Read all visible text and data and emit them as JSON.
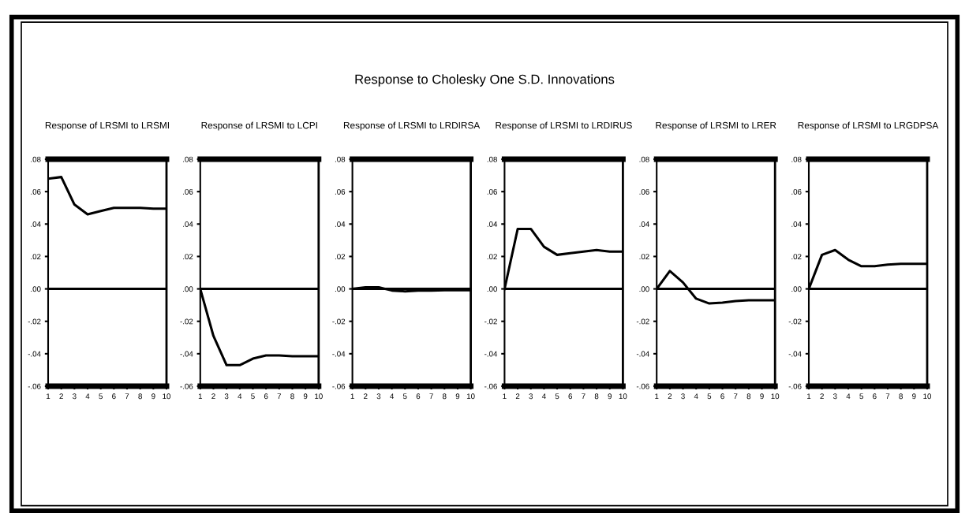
{
  "chart_data": [
    {
      "type": "line",
      "title": "Response of LRSMI to LRSMI",
      "annotations": [
        "Response to Cholesky One S.D. Innovations"
      ],
      "x": [
        1,
        2,
        3,
        4,
        5,
        6,
        7,
        8,
        9,
        10
      ],
      "xlim": [
        1,
        10
      ],
      "xticks": [
        1,
        2,
        3,
        4,
        5,
        6,
        7,
        8,
        9,
        10
      ],
      "ylim": [
        -0.06,
        0.08
      ],
      "yticks": [
        {
          "value": -0.06,
          "label": "-.06"
        },
        {
          "value": -0.04,
          "label": "-.04"
        },
        {
          "value": -0.02,
          "label": "-.02"
        },
        {
          "value": 0,
          "label": ".00"
        },
        {
          "value": 0.02,
          "label": ".02"
        },
        {
          "value": 0.04,
          "label": ".04"
        },
        {
          "value": 0.06,
          "label": ".06"
        },
        {
          "value": 0.08,
          "label": ".08"
        }
      ],
      "ref_lines": [
        {
          "axis": "y",
          "value": 0,
          "color": "#000000"
        }
      ],
      "grid": false,
      "legend": false,
      "series": [
        {
          "color": "#000000",
          "values": [
            0.068,
            0.069,
            0.052,
            0.046,
            0.048,
            0.05,
            0.05,
            0.05,
            0.0495,
            0.0495
          ]
        }
      ]
    },
    {
      "type": "line",
      "title": "Response of LRSMI to LCPI",
      "x": [
        1,
        2,
        3,
        4,
        5,
        6,
        7,
        8,
        9,
        10
      ],
      "xlim": [
        1,
        10
      ],
      "xticks": [
        1,
        2,
        3,
        4,
        5,
        6,
        7,
        8,
        9,
        10
      ],
      "ylim": [
        -0.06,
        0.08
      ],
      "yticks": [
        {
          "value": -0.06,
          "label": "-.06"
        },
        {
          "value": -0.04,
          "label": "-.04"
        },
        {
          "value": -0.02,
          "label": "-.02"
        },
        {
          "value": 0,
          "label": ".00"
        },
        {
          "value": 0.02,
          "label": ".02"
        },
        {
          "value": 0.04,
          "label": ".04"
        },
        {
          "value": 0.06,
          "label": ".06"
        },
        {
          "value": 0.08,
          "label": ".08"
        }
      ],
      "ref_lines": [
        {
          "axis": "y",
          "value": 0,
          "color": "#000000"
        }
      ],
      "grid": false,
      "legend": false,
      "series": [
        {
          "color": "#000000",
          "values": [
            0.0,
            -0.029,
            -0.047,
            -0.047,
            -0.043,
            -0.041,
            -0.041,
            -0.0415,
            -0.0415,
            -0.0415
          ]
        }
      ]
    },
    {
      "type": "line",
      "title": "Response of LRSMI to LRDIRSA",
      "x": [
        1,
        2,
        3,
        4,
        5,
        6,
        7,
        8,
        9,
        10
      ],
      "xlim": [
        1,
        10
      ],
      "xticks": [
        1,
        2,
        3,
        4,
        5,
        6,
        7,
        8,
        9,
        10
      ],
      "ylim": [
        -0.06,
        0.08
      ],
      "yticks": [
        {
          "value": -0.06,
          "label": "-.06"
        },
        {
          "value": -0.04,
          "label": "-.04"
        },
        {
          "value": -0.02,
          "label": "-.02"
        },
        {
          "value": 0,
          "label": ".00"
        },
        {
          "value": 0.02,
          "label": ".02"
        },
        {
          "value": 0.04,
          "label": ".04"
        },
        {
          "value": 0.06,
          "label": ".06"
        },
        {
          "value": 0.08,
          "label": ".08"
        }
      ],
      "ref_lines": [
        {
          "axis": "y",
          "value": 0,
          "color": "#000000"
        }
      ],
      "grid": false,
      "legend": false,
      "series": [
        {
          "color": "#000000",
          "values": [
            0.0,
            0.001,
            0.001,
            -0.001,
            -0.0015,
            -0.001,
            -0.001,
            -0.0008,
            -0.0008,
            -0.0008
          ]
        }
      ]
    },
    {
      "type": "line",
      "title": "Response of LRSMI to LRDIRUS",
      "x": [
        1,
        2,
        3,
        4,
        5,
        6,
        7,
        8,
        9,
        10
      ],
      "xlim": [
        1,
        10
      ],
      "xticks": [
        1,
        2,
        3,
        4,
        5,
        6,
        7,
        8,
        9,
        10
      ],
      "ylim": [
        -0.06,
        0.08
      ],
      "yticks": [
        {
          "value": -0.06,
          "label": "-.06"
        },
        {
          "value": -0.04,
          "label": "-.04"
        },
        {
          "value": -0.02,
          "label": "-.02"
        },
        {
          "value": 0,
          "label": ".00"
        },
        {
          "value": 0.02,
          "label": ".02"
        },
        {
          "value": 0.04,
          "label": ".04"
        },
        {
          "value": 0.06,
          "label": ".06"
        },
        {
          "value": 0.08,
          "label": ".08"
        }
      ],
      "ref_lines": [
        {
          "axis": "y",
          "value": 0,
          "color": "#000000"
        }
      ],
      "grid": false,
      "legend": false,
      "series": [
        {
          "color": "#000000",
          "values": [
            0.0,
            0.037,
            0.037,
            0.026,
            0.021,
            0.022,
            0.023,
            0.024,
            0.023,
            0.023
          ]
        }
      ]
    },
    {
      "type": "line",
      "title": "Response of LRSMI to LRER",
      "x": [
        1,
        2,
        3,
        4,
        5,
        6,
        7,
        8,
        9,
        10
      ],
      "xlim": [
        1,
        10
      ],
      "xticks": [
        1,
        2,
        3,
        4,
        5,
        6,
        7,
        8,
        9,
        10
      ],
      "ylim": [
        -0.06,
        0.08
      ],
      "yticks": [
        {
          "value": -0.06,
          "label": "-.06"
        },
        {
          "value": -0.04,
          "label": "-.04"
        },
        {
          "value": -0.02,
          "label": "-.02"
        },
        {
          "value": 0,
          "label": ".00"
        },
        {
          "value": 0.02,
          "label": ".02"
        },
        {
          "value": 0.04,
          "label": ".04"
        },
        {
          "value": 0.06,
          "label": ".06"
        },
        {
          "value": 0.08,
          "label": ".08"
        }
      ],
      "ref_lines": [
        {
          "axis": "y",
          "value": 0,
          "color": "#000000"
        }
      ],
      "grid": false,
      "legend": false,
      "series": [
        {
          "color": "#000000",
          "values": [
            0.0,
            0.011,
            0.004,
            -0.006,
            -0.009,
            -0.0085,
            -0.0075,
            -0.007,
            -0.007,
            -0.007
          ]
        }
      ]
    },
    {
      "type": "line",
      "title": "Response of LRSMI to LRGDPSA",
      "x": [
        1,
        2,
        3,
        4,
        5,
        6,
        7,
        8,
        9,
        10
      ],
      "xlim": [
        1,
        10
      ],
      "xticks": [
        1,
        2,
        3,
        4,
        5,
        6,
        7,
        8,
        9,
        10
      ],
      "ylim": [
        -0.06,
        0.08
      ],
      "yticks": [
        {
          "value": -0.06,
          "label": "-.06"
        },
        {
          "value": -0.04,
          "label": "-.04"
        },
        {
          "value": -0.02,
          "label": "-.02"
        },
        {
          "value": 0,
          "label": ".00"
        },
        {
          "value": 0.02,
          "label": ".02"
        },
        {
          "value": 0.04,
          "label": ".04"
        },
        {
          "value": 0.06,
          "label": ".06"
        },
        {
          "value": 0.08,
          "label": ".08"
        }
      ],
      "ref_lines": [
        {
          "axis": "y",
          "value": 0,
          "color": "#000000"
        }
      ],
      "grid": false,
      "legend": false,
      "series": [
        {
          "color": "#000000",
          "values": [
            0.0,
            0.021,
            0.024,
            0.018,
            0.014,
            0.014,
            0.015,
            0.0155,
            0.0155,
            0.0155
          ]
        }
      ]
    }
  ]
}
